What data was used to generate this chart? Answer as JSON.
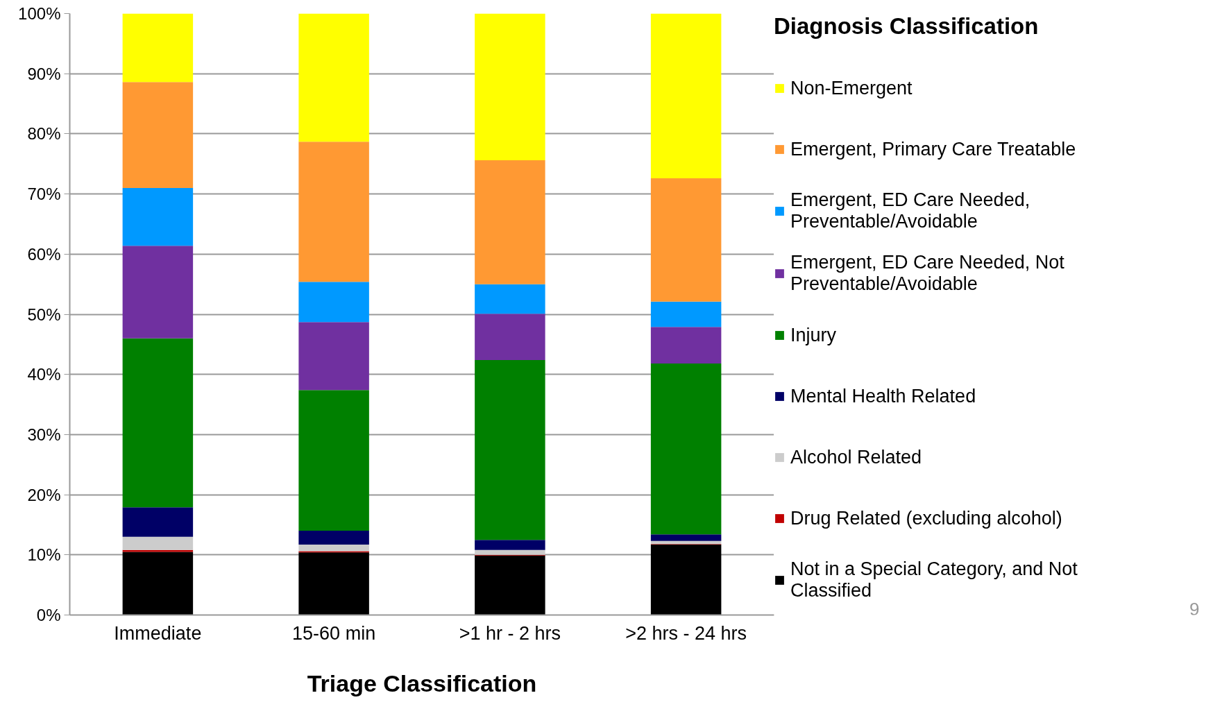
{
  "chart_data": {
    "type": "bar",
    "stacked": true,
    "xlabel": "Triage Classification",
    "legend_title": "Diagnosis Classification",
    "categories": [
      "Immediate",
      "15-60 min",
      ">1 hr - 2 hrs",
      ">2 hrs - 24 hrs"
    ],
    "series": [
      {
        "name": "Not in a Special Category, and Not Classified",
        "color": "#000000",
        "values": [
          10.5,
          10.4,
          9.9,
          11.7
        ]
      },
      {
        "name": "Drug Related (excluding alcohol)",
        "color": "#c00000",
        "values": [
          0.3,
          0.2,
          0.1,
          0.1
        ]
      },
      {
        "name": "Alcohol Related",
        "color": "#cccccc",
        "values": [
          2.2,
          1.1,
          0.8,
          0.5
        ]
      },
      {
        "name": "Mental Health Related",
        "color": "#000066",
        "values": [
          4.9,
          2.3,
          1.7,
          1.1
        ]
      },
      {
        "name": "Injury",
        "color": "#008000",
        "values": [
          28.1,
          23.4,
          29.9,
          28.4
        ]
      },
      {
        "name": "Emergent, ED Care Needed, Not Preventable/Avoidable",
        "color": "#7030a0",
        "values": [
          15.4,
          11.3,
          7.7,
          6.1
        ]
      },
      {
        "name": "Emergent, ED Care Needed, Preventable/Avoidable",
        "color": "#0099ff",
        "values": [
          9.6,
          6.7,
          4.9,
          4.2
        ]
      },
      {
        "name": "Emergent, Primary Care Treatable",
        "color": "#ff9933",
        "values": [
          17.6,
          23.3,
          20.6,
          20.5
        ]
      },
      {
        "name": "Non-Emergent",
        "color": "#ffff00",
        "values": [
          11.4,
          21.3,
          24.4,
          27.4
        ]
      }
    ],
    "ylim": [
      0,
      100
    ],
    "yticks": [
      {
        "value": 0,
        "label": "0%"
      },
      {
        "value": 10,
        "label": "10%"
      },
      {
        "value": 20,
        "label": "20%"
      },
      {
        "value": 30,
        "label": "30%"
      },
      {
        "value": 40,
        "label": "40%"
      },
      {
        "value": 50,
        "label": "50%"
      },
      {
        "value": 60,
        "label": "60%"
      },
      {
        "value": 70,
        "label": "70%"
      },
      {
        "value": 80,
        "label": "80%"
      },
      {
        "value": 90,
        "label": "90%"
      },
      {
        "value": 100,
        "label": "100%"
      }
    ],
    "grid": "y",
    "legend": "right",
    "annotations": [
      "9"
    ]
  }
}
